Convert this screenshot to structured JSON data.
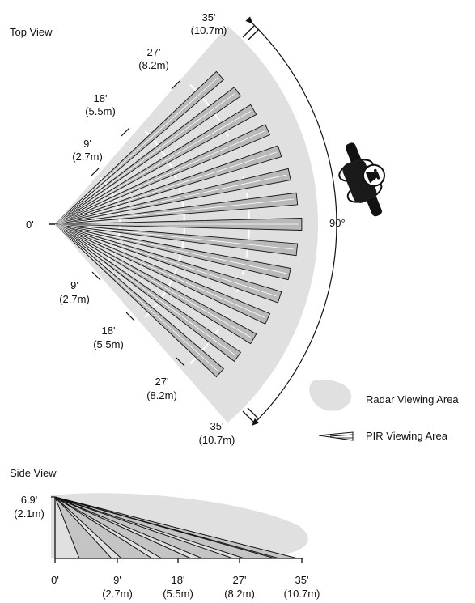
{
  "top_view": {
    "title": "Top View",
    "origin_label": "0'",
    "angle_label": "90°",
    "distances": [
      {
        "ft": "9'",
        "m": "(2.7m)"
      },
      {
        "ft": "18'",
        "m": "(5.5m)"
      },
      {
        "ft": "27'",
        "m": "(8.2m)"
      },
      {
        "ft": "35'",
        "m": "(10.7m)"
      }
    ]
  },
  "legend": {
    "radar_label": "Radar Viewing Area",
    "pir_label": "PIR Viewing Area"
  },
  "side_view": {
    "title": "Side View",
    "height_ft": "6.9'",
    "height_m": "(2.1m)",
    "x_ticks": [
      {
        "ft": "0'",
        "m": ""
      },
      {
        "ft": "9'",
        "m": "(2.7m)"
      },
      {
        "ft": "18'",
        "m": "(5.5m)"
      },
      {
        "ft": "27'",
        "m": "(8.2m)"
      },
      {
        "ft": "35'",
        "m": "(10.7m)"
      }
    ]
  },
  "colors": {
    "radar_fill": "#e0e0e0",
    "pir_fill": "#c4c4c4",
    "stroke": "#111111"
  },
  "icons": [
    "person-icon"
  ]
}
